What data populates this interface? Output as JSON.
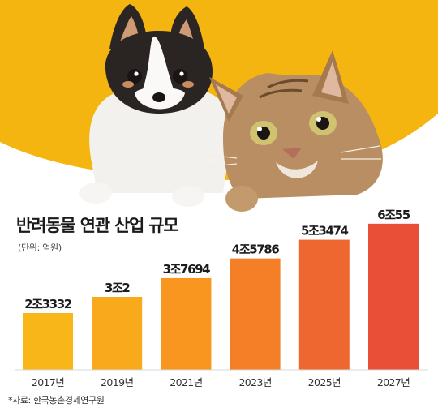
{
  "chart_data": {
    "type": "bar",
    "title": "반려동물 연관 산업 규모",
    "unit": "(단위: 억원)",
    "categories": [
      "2017년",
      "2019년",
      "2021년",
      "2023년",
      "2025년",
      "2027년"
    ],
    "values": [
      23332,
      30002,
      37694,
      45786,
      53474,
      60055
    ],
    "value_labels": [
      "2조3332",
      "3조2",
      "3조7694",
      "4조5786",
      "5조3474",
      "6조55"
    ],
    "ylim": [
      0,
      62000
    ],
    "grid": false,
    "bar_colors": [
      "#F8B618",
      "#F9A91C",
      "#F8961F",
      "#F47F27",
      "#EF6730",
      "#E94E37"
    ]
  },
  "illustration": {
    "background_color": "#F5B510",
    "subjects": [
      "dog-icon",
      "cat-icon"
    ]
  },
  "source": "*자료: 한국농촌경제연구원"
}
